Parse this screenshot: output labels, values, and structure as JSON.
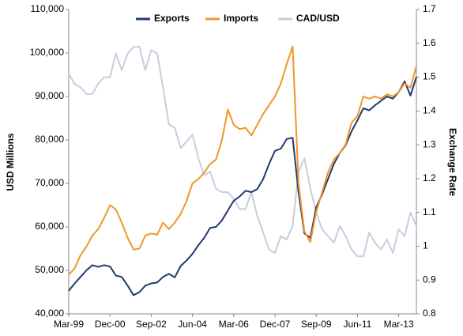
{
  "chart_data": {
    "type": "line",
    "y_label": "USD Millions",
    "y2_label": "Exchange Rate",
    "categories": [
      "Mar-99",
      null,
      null,
      null,
      null,
      null,
      null,
      "Dec-00",
      null,
      null,
      null,
      null,
      null,
      null,
      "Sep-02",
      null,
      null,
      null,
      null,
      null,
      null,
      "Jun-04",
      null,
      null,
      null,
      null,
      null,
      null,
      "Mar-06",
      null,
      null,
      null,
      null,
      null,
      null,
      "Dec-07",
      null,
      null,
      null,
      null,
      null,
      null,
      "Sep-09",
      null,
      null,
      null,
      null,
      null,
      null,
      "Jun-11",
      null,
      null,
      null,
      null,
      null,
      null,
      "Mar-13",
      null,
      null,
      null
    ],
    "series": [
      {
        "name": "Exports",
        "color": "#1f3a6e",
        "values": [
          45300,
          47000,
          48500,
          50000,
          51200,
          50800,
          51200,
          50900,
          48800,
          48500,
          46500,
          44300,
          45000,
          46500,
          47000,
          47200,
          48500,
          49200,
          48400,
          51000,
          52300,
          53800,
          55800,
          57500,
          59800,
          60000,
          61500,
          63800,
          66000,
          67000,
          68300,
          68000,
          68700,
          71000,
          74500,
          77500,
          78000,
          80200,
          80500,
          68000,
          58500,
          57500,
          64500,
          67500,
          71000,
          74500,
          77000,
          78800,
          82000,
          84500,
          87300,
          86800,
          88000,
          89000,
          90000,
          89500,
          91000,
          93500,
          90200,
          94500
        ]
      },
      {
        "name": "Imports",
        "color": "#f0962a",
        "values": [
          49000,
          50500,
          53500,
          55500,
          58000,
          59500,
          62000,
          65000,
          64000,
          61000,
          57500,
          54800,
          55000,
          58000,
          58500,
          58200,
          61000,
          59500,
          61000,
          63000,
          66000,
          70000,
          71000,
          72500,
          74500,
          75500,
          80000,
          87000,
          83500,
          82500,
          82800,
          81000,
          83500,
          86000,
          88000,
          90000,
          93000,
          97500,
          101500,
          70000,
          59000,
          56500,
          63500,
          68000,
          72500,
          75500,
          77000,
          79000,
          84000,
          85500,
          90000,
          89500,
          90000,
          89500,
          90500,
          90000,
          91000,
          93000,
          92000,
          97000
        ]
      },
      {
        "name": "CAD/USD",
        "color": "#c8cde0",
        "axis": "y2",
        "values": [
          1.51,
          1.48,
          1.47,
          1.45,
          1.45,
          1.48,
          1.5,
          1.5,
          1.57,
          1.52,
          1.57,
          1.59,
          1.59,
          1.52,
          1.58,
          1.57,
          1.47,
          1.36,
          1.35,
          1.29,
          1.31,
          1.33,
          1.26,
          1.21,
          1.22,
          1.17,
          1.16,
          1.16,
          1.14,
          1.11,
          1.11,
          1.16,
          1.09,
          1.04,
          0.99,
          0.98,
          1.03,
          1.02,
          1.06,
          1.22,
          1.26,
          1.17,
          1.1,
          1.05,
          1.03,
          1.01,
          1.06,
          1.03,
          0.99,
          0.97,
          0.97,
          1.04,
          1.01,
          0.99,
          1.02,
          0.98,
          1.05,
          1.03,
          1.1,
          1.06
        ]
      }
    ],
    "ylim": [
      40000,
      110000
    ],
    "yticks": [
      {
        "value": 40000,
        "label": "40,000"
      },
      {
        "value": 50000,
        "label": "50,000"
      },
      {
        "value": 60000,
        "label": "60,000"
      },
      {
        "value": 70000,
        "label": "70,000"
      },
      {
        "value": 80000,
        "label": "80,000"
      },
      {
        "value": 90000,
        "label": "90,000"
      },
      {
        "value": 100000,
        "label": "100,000"
      },
      {
        "value": 110000,
        "label": "110,000"
      }
    ],
    "y2lim": [
      0.8,
      1.7
    ],
    "y2ticks": [
      0.8,
      0.9,
      1,
      1.1,
      1.2,
      1.3,
      1.4,
      1.5,
      1.6,
      1.7
    ],
    "legend": "top",
    "grid": false
  }
}
